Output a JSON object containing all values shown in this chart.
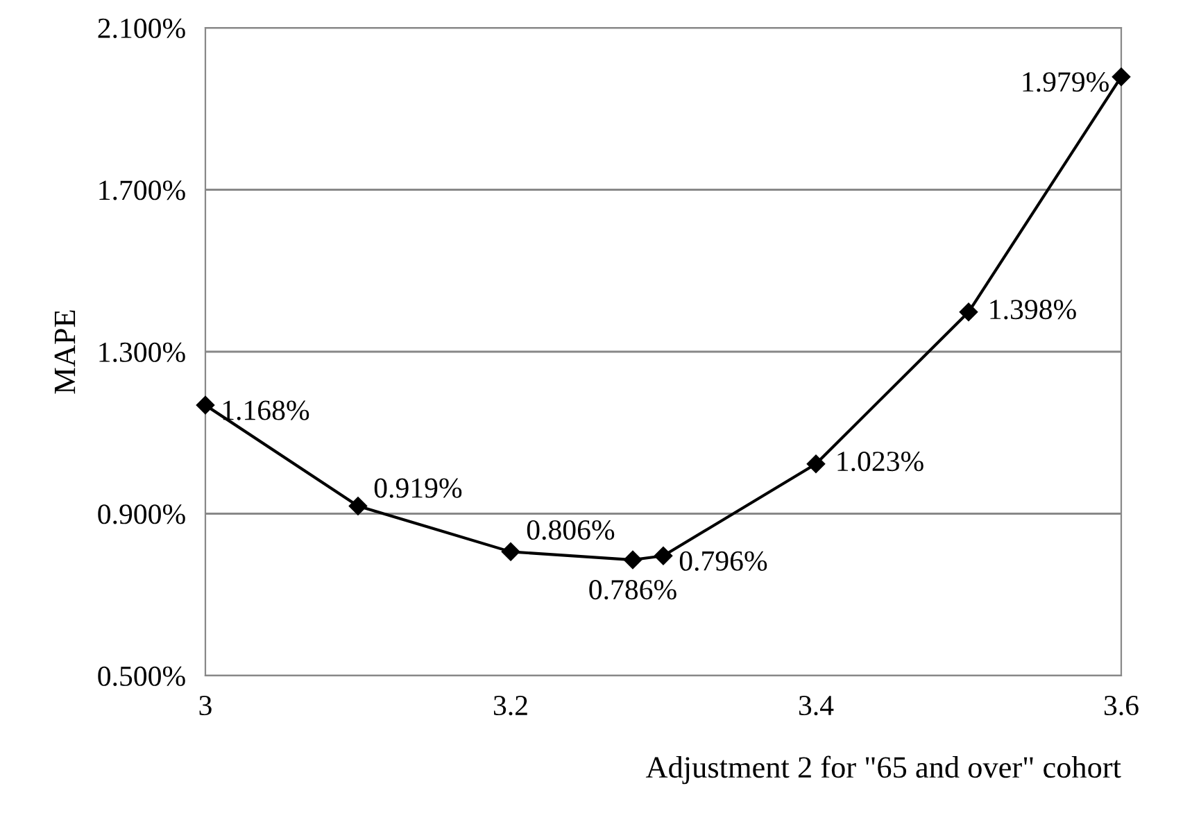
{
  "chart_data": {
    "type": "line",
    "xlabel": "Adjustment 2 for \"65 and over\" cohort",
    "ylabel": "MAPE",
    "x": [
      3,
      3.1,
      3.2,
      3.28,
      3.3,
      3.4,
      3.5,
      3.6
    ],
    "series": [
      {
        "color": "#000000",
        "values": [
          1.168,
          0.919,
          0.806,
          0.786,
          0.796,
          1.023,
          1.398,
          1.979
        ],
        "value_labels": [
          "1.168%",
          "0.919%",
          "0.806%",
          "0.786%",
          "0.796%",
          "1.023%",
          "1.398%",
          "1.979%"
        ]
      }
    ],
    "xlim": [
      3,
      3.6
    ],
    "xticks": [
      3,
      3.2,
      3.4,
      3.6
    ],
    "ylim": [
      0.5,
      2.1
    ],
    "yticks": [
      {
        "value": 0.5,
        "label": "0.500%"
      },
      {
        "value": 0.9,
        "label": "0.900%"
      },
      {
        "value": 1.3,
        "label": "1.300%"
      },
      {
        "value": 1.7,
        "label": "1.700%"
      },
      {
        "value": 2.1,
        "label": "2.100%"
      }
    ],
    "grid": "y",
    "marker": "diamond",
    "line_style": "solid"
  }
}
